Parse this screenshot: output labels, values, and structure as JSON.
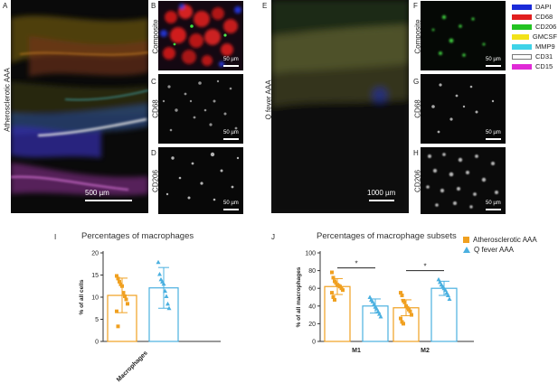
{
  "panels": {
    "A": "A",
    "B": "B",
    "C": "C",
    "D": "D",
    "E": "E",
    "F": "F",
    "G": "G",
    "H": "H",
    "I": "I",
    "J": "J"
  },
  "row_labels": {
    "atherosclerotic": "Atherosclerotic AAA",
    "qfever": "Q fever AAA",
    "composite": "Composite",
    "cd68": "CD68",
    "cd206": "CD206"
  },
  "scales": {
    "small": "50 µm",
    "a": "500 µm",
    "e": "1000 µm"
  },
  "legend": [
    {
      "label": "DAPI",
      "color": "#1a2ad8"
    },
    {
      "label": "CD68",
      "color": "#e11f1f"
    },
    {
      "label": "CD206",
      "color": "#22c322"
    },
    {
      "label": "GMCSF",
      "color": "#f2e21a"
    },
    {
      "label": "MMP9",
      "color": "#3fd3e8"
    },
    {
      "label": "CD31",
      "color": "#ffffff"
    },
    {
      "label": "CD15",
      "color": "#e02ad6"
    }
  ],
  "colors": {
    "atherosclerotic": "#f0a020",
    "qfever": "#4ab0e0"
  },
  "chart_data": [
    {
      "type": "bar",
      "title": "Percentages of macrophages",
      "ylabel": "% of all cells",
      "xlabel": "",
      "categories": [
        "Macrophages"
      ],
      "ylim": [
        0,
        20
      ],
      "yticks": [
        "0",
        "5",
        "10",
        "15",
        "20"
      ],
      "series": [
        {
          "name": "Atherosclerotic AAA",
          "values": [
            10.4
          ],
          "sd": [
            3.9
          ],
          "points": [
            14.8,
            14.2,
            13.5,
            12.9,
            12.5,
            11.0,
            10.2,
            9.5,
            8.5,
            6.8,
            3.4
          ]
        },
        {
          "name": "Q fever AAA",
          "values": [
            12.1
          ],
          "sd": [
            4.6
          ],
          "points": [
            17.9,
            15.2,
            14.0,
            13.5,
            13.0,
            11.4,
            10.2,
            8.5,
            7.5
          ]
        }
      ]
    },
    {
      "type": "bar",
      "title": "Percentages of macrophage subsets",
      "ylabel": "% of all macrophages",
      "xlabel": "",
      "categories": [
        "M1",
        "M2"
      ],
      "ylim": [
        0,
        100
      ],
      "yticks": [
        "0",
        "20",
        "40",
        "60",
        "80",
        "100"
      ],
      "series": [
        {
          "name": "Atherosclerotic AAA",
          "values": [
            62,
            38
          ],
          "sd": [
            9,
            9
          ],
          "points": [
            [
              78,
              72,
              68,
              66,
              64,
              63,
              62,
              60,
              58,
              55,
              50,
              47
            ],
            [
              55,
              52,
              46,
              44,
              40,
              38,
              36,
              34,
              30,
              26,
              22,
              20
            ]
          ]
        },
        {
          "name": "Q fever AAA",
          "values": [
            40,
            60
          ],
          "sd": [
            8,
            8
          ],
          "points": [
            [
              50,
              47,
              45,
              42,
              39,
              37,
              34,
              31,
              28
            ],
            [
              70,
              67,
              64,
              62,
              60,
              58,
              55,
              52,
              48
            ]
          ]
        }
      ],
      "significance": [
        {
          "between": "M1",
          "label": "*"
        },
        {
          "between": "M2",
          "label": "*"
        }
      ]
    }
  ]
}
